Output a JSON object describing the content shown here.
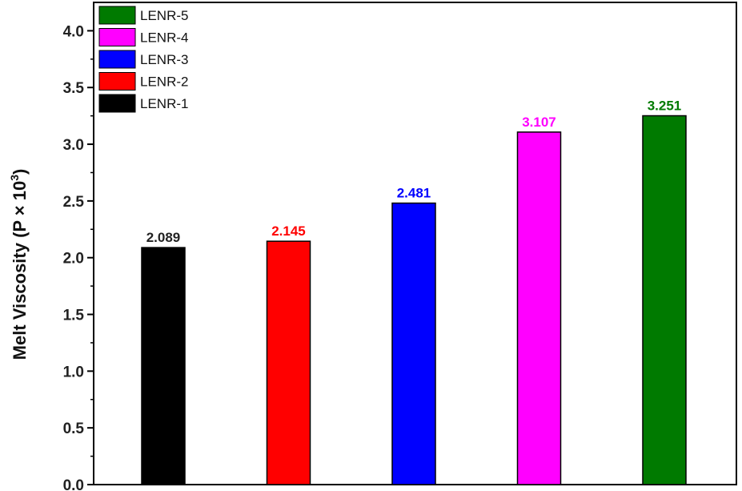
{
  "chart_data": {
    "type": "bar",
    "categories": [
      "LENR-1",
      "LENR-2",
      "LENR-3",
      "LENR-4",
      "LENR-5"
    ],
    "values": [
      2.089,
      2.145,
      2.481,
      3.107,
      3.251
    ],
    "value_labels": [
      "2.089",
      "2.145",
      "2.481",
      "3.107",
      "3.251"
    ],
    "colors": [
      "#000000",
      "#ff0000",
      "#0000ff",
      "#ff00ff",
      "#007a00"
    ],
    "label_colors": [
      "#222222",
      "#ff0000",
      "#0000ff",
      "#ff00ff",
      "#007a00"
    ],
    "ylabel_main": "Melt Viscosity (P × 10",
    "ylabel_exp": "3",
    "ylabel_close": ")",
    "ylim": [
      0,
      4.25
    ],
    "yticks": [
      0.0,
      0.5,
      1.0,
      1.5,
      2.0,
      2.5,
      3.0,
      3.5,
      4.0
    ],
    "ytick_labels": [
      "0.0",
      "0.5",
      "1.0",
      "1.5",
      "2.0",
      "2.5",
      "3.0",
      "3.5",
      "4.0"
    ],
    "grid": false,
    "legend": {
      "placement": "top-left",
      "order": [
        "LENR-5",
        "LENR-4",
        "LENR-3",
        "LENR-2",
        "LENR-1"
      ]
    }
  }
}
